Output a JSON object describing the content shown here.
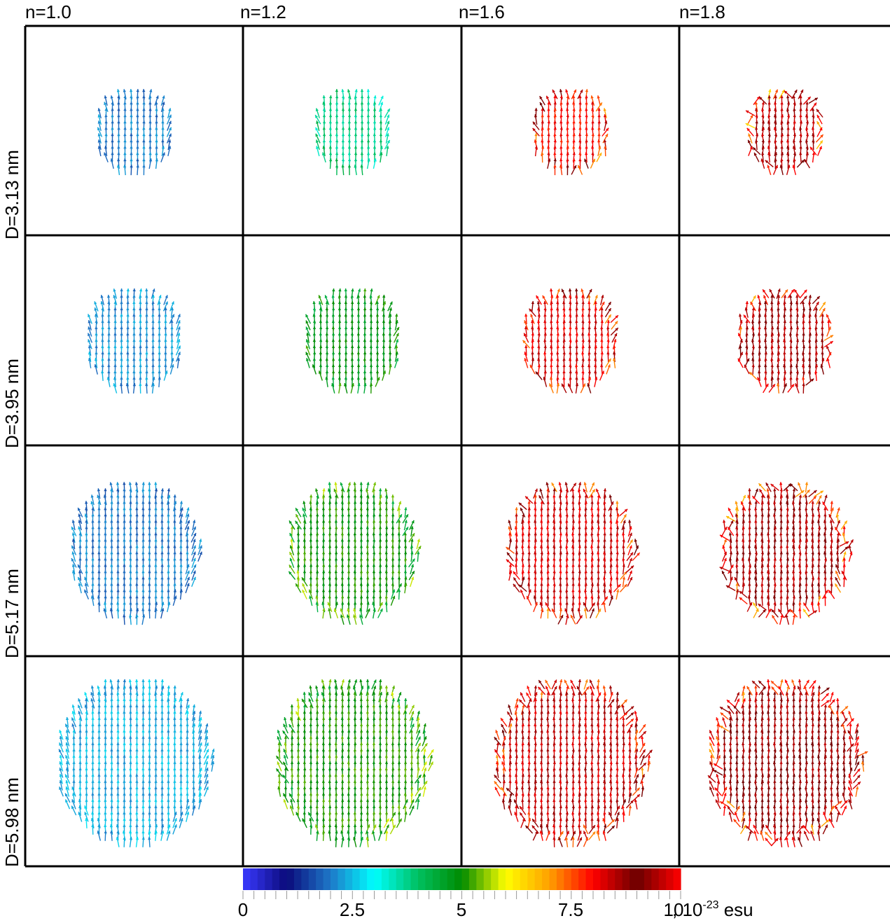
{
  "columns": [
    "n=1.0",
    "n=1.2",
    "n=1.6",
    "n=1.8"
  ],
  "rows": [
    "D=3.13 nm",
    "D=3.95 nm",
    "D=5.17 nm",
    "D=5.98 nm"
  ],
  "colorbar": {
    "ticks": [
      "0",
      "2.5",
      "5",
      "7.5",
      "10"
    ],
    "min": 0,
    "max": 10,
    "unit_prefix": " , 10",
    "unit_exponent": "-23",
    "unit_suffix": " esu",
    "colormap": [
      "#3a3aff",
      "#0a0a7a",
      "#1e78c8",
      "#00ffff",
      "#00c060",
      "#008a00",
      "#ffff00",
      "#ffa000",
      "#ff0000",
      "#6a0000",
      "#ff0000"
    ]
  },
  "panels": [
    [
      {
        "magnitude": 2.0,
        "disorder": 0.1
      },
      {
        "magnitude": 3.8,
        "disorder": 0.15
      },
      {
        "magnitude": 8.0,
        "disorder": 0.3
      },
      {
        "magnitude": 8.5,
        "disorder": 0.55
      }
    ],
    [
      {
        "magnitude": 2.2,
        "disorder": 0.1
      },
      {
        "magnitude": 4.8,
        "disorder": 0.15
      },
      {
        "magnitude": 8.2,
        "disorder": 0.3
      },
      {
        "magnitude": 8.6,
        "disorder": 0.45
      }
    ],
    [
      {
        "magnitude": 2.0,
        "disorder": 0.1
      },
      {
        "magnitude": 5.0,
        "disorder": 0.2
      },
      {
        "magnitude": 8.3,
        "disorder": 0.35
      },
      {
        "magnitude": 8.6,
        "disorder": 0.5
      }
    ],
    [
      {
        "magnitude": 2.4,
        "disorder": 0.1
      },
      {
        "magnitude": 5.1,
        "disorder": 0.2
      },
      {
        "magnitude": 8.4,
        "disorder": 0.35
      },
      {
        "magnitude": 8.7,
        "disorder": 0.45
      }
    ]
  ]
}
